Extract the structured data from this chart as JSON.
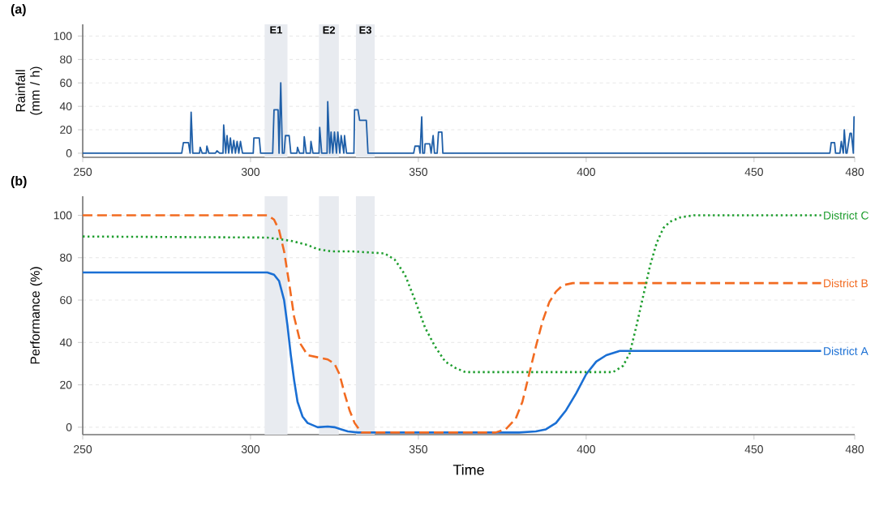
{
  "chart_data": [
    {
      "type": "line",
      "title": "(a)",
      "ylabel": "Rainfall (mm / h)",
      "color": "#1f5fa8",
      "x": [
        250,
        279.5,
        280,
        281.5,
        282,
        282.3,
        282.8,
        283.2,
        284.8,
        285,
        285.6,
        286,
        286.8,
        287,
        287.6,
        288,
        289.5,
        290,
        290.8,
        291,
        291.8,
        292,
        292.6,
        293,
        293.5,
        294,
        294.5,
        295,
        295.5,
        296,
        296.5,
        297,
        297.6,
        298,
        300.8,
        301,
        302.6,
        303,
        306.6,
        307,
        308.2,
        308.5,
        309,
        309.5,
        310,
        310.4,
        311.5,
        312,
        313.8,
        314,
        314.6,
        315,
        315.8,
        316,
        316.6,
        317,
        317.8,
        318,
        318.6,
        319,
        320.4,
        320.6,
        321.2,
        321.5,
        322.8,
        323,
        323.6,
        324,
        324.5,
        325,
        325.6,
        326,
        326.6,
        327,
        327.8,
        328,
        328.6,
        329,
        330.8,
        331,
        332,
        332.5,
        334.5,
        335,
        348.6,
        349,
        350.2,
        350.5,
        351,
        351.3,
        351.8,
        352,
        353.4,
        353.8,
        354.4,
        354.8,
        355.6,
        356,
        357,
        357.3,
        472.6,
        473,
        474,
        474.3,
        475.6,
        476,
        476.6,
        476.9,
        477.4,
        477.7,
        478.6,
        479,
        479.6,
        479.8,
        480
      ],
      "values": [
        0,
        0,
        9,
        9,
        0,
        35,
        0,
        0,
        0,
        5,
        0,
        0,
        0,
        6,
        0,
        0,
        0,
        2,
        0,
        0,
        0,
        24,
        0,
        15,
        0,
        13,
        0,
        11,
        0,
        10,
        0,
        10,
        0,
        0,
        0,
        13,
        13,
        0,
        0,
        37,
        37,
        0,
        60,
        0,
        0,
        15,
        15,
        0,
        0,
        5,
        0,
        0,
        0,
        14,
        0,
        0,
        0,
        10,
        0,
        0,
        0,
        22,
        0,
        0,
        0,
        44,
        0,
        18,
        0,
        18,
        0,
        18,
        0,
        15,
        0,
        15,
        0,
        0,
        0,
        37,
        37,
        28,
        28,
        0,
        0,
        6,
        6,
        0,
        31,
        0,
        0,
        8,
        8,
        0,
        15,
        0,
        0,
        18,
        18,
        0,
        0,
        9,
        9,
        0,
        0,
        10,
        0,
        20,
        0,
        0,
        17,
        17,
        0,
        31,
        31
      ],
      "xlim": [
        250,
        480
      ],
      "xticks": [
        250,
        300,
        350,
        400,
        450,
        480
      ],
      "ylim": [
        -3.5,
        110
      ],
      "yticks": [
        0,
        20,
        40,
        60,
        80,
        100
      ],
      "grid": "y",
      "bands": [
        {
          "axis": "x",
          "from": 304.2,
          "to": 311,
          "label": "E1",
          "color": "#e8ebf0"
        },
        {
          "axis": "x",
          "from": 320.4,
          "to": 326.3,
          "label": "E2",
          "color": "#e8ebf0"
        },
        {
          "axis": "x",
          "from": 331.4,
          "to": 337,
          "label": "E3",
          "color": "#e8ebf0"
        }
      ]
    },
    {
      "type": "line",
      "title": "(b)",
      "xlabel": "Time",
      "ylabel": "Performance (%)",
      "series": [
        {
          "name": "District A",
          "color": "#1a6fd4",
          "line_style": "solid",
          "x": [
            250,
            305,
            307,
            308.5,
            310,
            311,
            312,
            313,
            314,
            315.5,
            317,
            320,
            323,
            325,
            327,
            329,
            332,
            380,
            385,
            388,
            391,
            394,
            397,
            400,
            403,
            406,
            410,
            470
          ],
          "values": [
            73,
            73,
            72,
            69,
            60,
            48,
            34,
            22,
            12,
            5,
            2,
            0,
            0.3,
            0,
            -1,
            -2,
            -2.5,
            -2.5,
            -2,
            -1,
            2,
            8,
            16,
            25,
            31,
            34,
            36,
            36
          ]
        },
        {
          "name": "District B",
          "color": "#f26b21",
          "line_style": "dashed",
          "x": [
            250,
            305,
            307,
            308.5,
            310,
            311.5,
            313,
            315,
            317,
            320,
            323,
            325,
            326.5,
            328,
            329.5,
            331,
            333,
            373,
            376,
            379,
            381,
            383,
            385,
            387,
            389,
            391,
            393,
            396,
            400,
            470
          ],
          "values": [
            100,
            100,
            98,
            93,
            83,
            68,
            52,
            39,
            34,
            33,
            32,
            30,
            25,
            16,
            8,
            2,
            -2.5,
            -2.5,
            -1,
            4,
            12,
            25,
            38,
            50,
            59,
            64,
            67,
            68,
            68,
            68
          ]
        },
        {
          "name": "District C",
          "color": "#1f9e2f",
          "line_style": "dotted",
          "x": [
            250,
            305,
            312,
            317,
            320,
            324,
            330,
            340,
            343,
            346,
            349,
            352,
            355,
            358,
            361,
            364,
            367,
            400,
            408,
            411,
            413,
            415,
            417,
            419,
            421,
            423,
            425,
            428,
            432,
            470
          ],
          "values": [
            90,
            89.5,
            88,
            86,
            84,
            83,
            83,
            82,
            79,
            72,
            60,
            47,
            38,
            31,
            28,
            26,
            26,
            26,
            26,
            29,
            35,
            48,
            62,
            76,
            87,
            94,
            97,
            99,
            100,
            100
          ]
        }
      ],
      "xlim": [
        250,
        480
      ],
      "xticks": [
        250,
        300,
        350,
        400,
        450,
        480
      ],
      "ylim": [
        -3.5,
        109
      ],
      "yticks": [
        0,
        20,
        40,
        60,
        80,
        100
      ],
      "grid": "y",
      "bands": [
        {
          "axis": "x",
          "from": 304.2,
          "to": 311,
          "color": "#e8ebf0"
        },
        {
          "axis": "x",
          "from": 320.4,
          "to": 326.3,
          "color": "#e8ebf0"
        },
        {
          "axis": "x",
          "from": 331.4,
          "to": 337,
          "color": "#e8ebf0"
        }
      ]
    }
  ]
}
